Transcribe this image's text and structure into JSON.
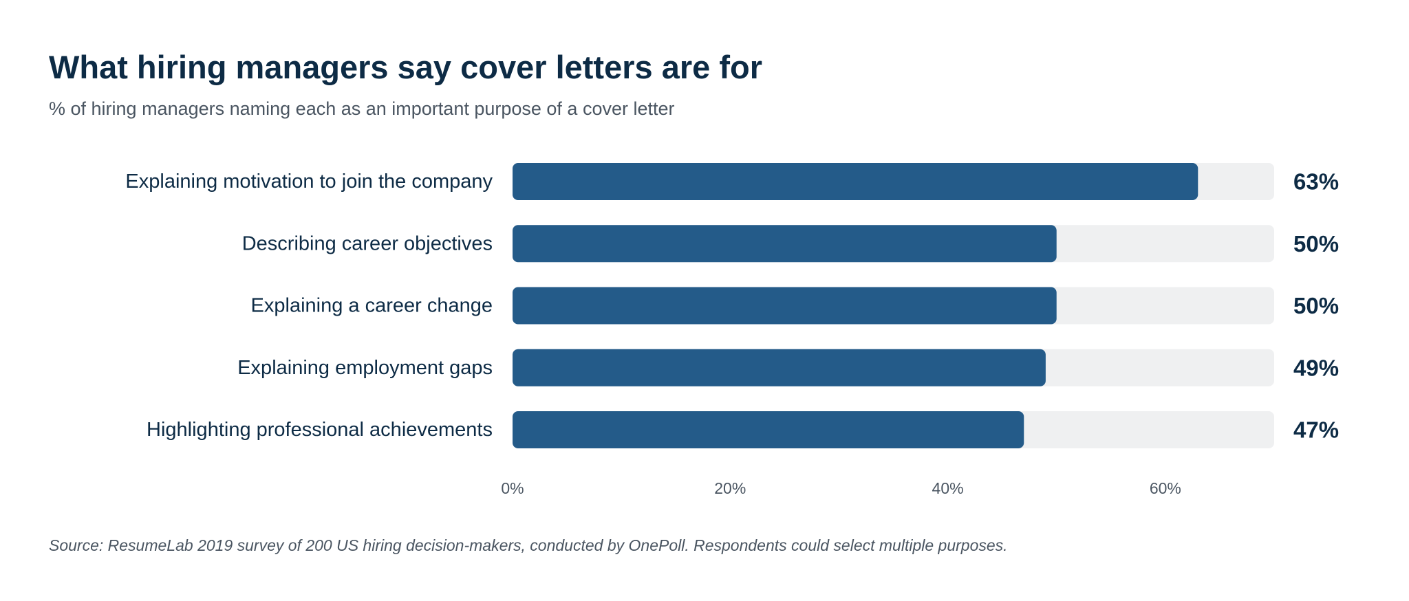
{
  "chart_data": {
    "type": "bar",
    "orientation": "horizontal",
    "title": "What hiring managers say cover letters are for",
    "subtitle": "% of hiring managers naming each as an important purpose of a cover letter",
    "categories": [
      "Explaining motivation to join the company",
      "Describing career objectives",
      "Explaining a career change",
      "Explaining employment gaps",
      "Highlighting professional achievements"
    ],
    "values": [
      63,
      50,
      50,
      49,
      47
    ],
    "value_labels": [
      "63%",
      "50%",
      "50%",
      "49%",
      "47%"
    ],
    "xlim": [
      0,
      70
    ],
    "x_ticks": [
      0,
      20,
      40,
      60
    ],
    "x_tick_labels": [
      "0%",
      "20%",
      "40%",
      "60%"
    ],
    "source": "Source: ResumeLab 2019 survey of 200 US hiring decision-makers, conducted by OnePoll. Respondents could select multiple purposes.",
    "colors": {
      "bar": "#245b89",
      "track": "#eff0f1",
      "text": "#0d2b45",
      "muted": "#4a5561"
    },
    "grid": false,
    "legend": "none"
  }
}
